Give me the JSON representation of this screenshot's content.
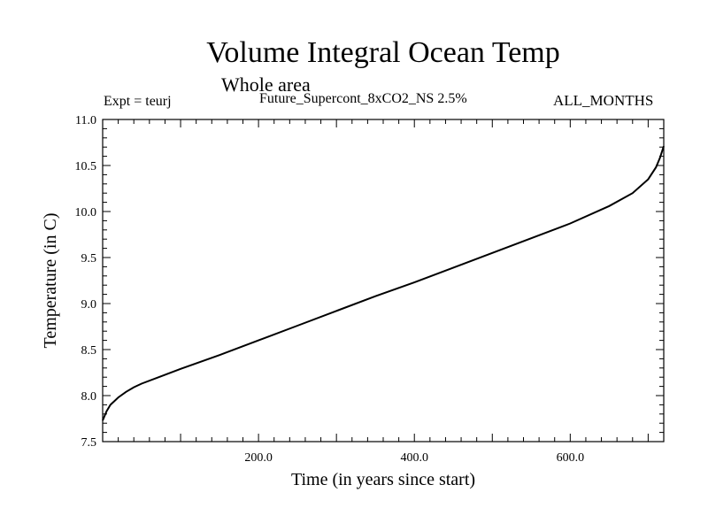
{
  "header": {
    "title": "Volume Integral Ocean Temp",
    "subtitle": "Whole area",
    "experiment": "Expt = teurj",
    "run_name": "Future_Supercont_8xCO2_NS 2.5%",
    "months": "ALL_MONTHS"
  },
  "chart_data": {
    "type": "line",
    "title": "Volume Integral Ocean Temp",
    "subtitle": "Whole area",
    "xlabel": "Time (in years since start)",
    "ylabel": "Temperature (in C)",
    "xlim": [
      0,
      720
    ],
    "ylim": [
      7.5,
      11.0
    ],
    "x_ticks": [
      200,
      400,
      600
    ],
    "x_tick_labels": [
      "200.0",
      "400.0",
      "600.0"
    ],
    "y_ticks": [
      7.5,
      8.0,
      8.5,
      9.0,
      9.5,
      10.0,
      10.5,
      11.0
    ],
    "y_tick_labels": [
      "7.5",
      "8.0",
      "8.5",
      "9.0",
      "9.5",
      "10.0",
      "10.5",
      "11.0"
    ],
    "grid": false,
    "series": [
      {
        "x": [
          0,
          5,
          10,
          20,
          30,
          40,
          50,
          75,
          100,
          150,
          200,
          250,
          300,
          350,
          400,
          450,
          500,
          550,
          600,
          650,
          680,
          700,
          710,
          715,
          720
        ],
        "y": [
          7.73,
          7.83,
          7.9,
          7.98,
          8.04,
          8.09,
          8.13,
          8.21,
          8.29,
          8.44,
          8.6,
          8.76,
          8.92,
          9.08,
          9.23,
          9.39,
          9.55,
          9.71,
          9.87,
          10.06,
          10.2,
          10.35,
          10.48,
          10.58,
          10.71
        ]
      }
    ],
    "line_color": "#000000"
  }
}
